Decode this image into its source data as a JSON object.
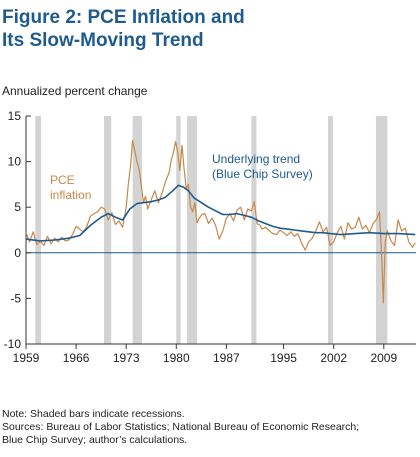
{
  "header": {
    "title_line1": "Figure 2: PCE Inflation and",
    "title_line2": "Its Slow-Moving Trend"
  },
  "notes": {
    "line1": "Note: Shaded bars indicate recessions.",
    "line2": "Sources: Bureau of Labor Statistics; National Bureau of Economic Research;",
    "line3": "Blue Chip Survey; author’s calculations."
  },
  "chart_data": {
    "type": "line",
    "ylabel": "Annualized percent change",
    "xlabel": "",
    "xlim": [
      1959,
      2013.5
    ],
    "ylim": [
      -10,
      15
    ],
    "x_ticks": [
      1959,
      1966,
      1973,
      1980,
      1987,
      1995,
      2002,
      2009
    ],
    "y_ticks": [
      15,
      10,
      5,
      0,
      -5,
      -10
    ],
    "grid": false,
    "colors": {
      "inflation": "#c8884a",
      "trend": "#1f5b8f",
      "recession": "#d3d3d3",
      "zero_line": "#1f5b8f"
    },
    "annotations": [
      {
        "text_lines": [
          "PCE",
          "inflation"
        ],
        "series": "inflation"
      },
      {
        "text_lines": [
          "Underlying trend",
          "(Blue Chip Survey)"
        ],
        "series": "trend"
      }
    ],
    "recessions": [
      [
        1960.3,
        1961.1
      ],
      [
        1969.9,
        1970.9
      ],
      [
        1973.9,
        1975.2
      ],
      [
        1980.0,
        1980.6
      ],
      [
        1981.5,
        1982.9
      ],
      [
        1990.5,
        1991.2
      ],
      [
        2001.2,
        2001.9
      ],
      [
        2007.9,
        2009.5
      ]
    ],
    "series": [
      {
        "name": "PCE inflation",
        "points": [
          [
            1959.0,
            2.2
          ],
          [
            1959.5,
            1.2
          ],
          [
            1960.0,
            2.3
          ],
          [
            1960.5,
            0.9
          ],
          [
            1961.0,
            1.3
          ],
          [
            1961.5,
            0.8
          ],
          [
            1962.0,
            1.8
          ],
          [
            1962.5,
            1.0
          ],
          [
            1963.0,
            1.6
          ],
          [
            1963.5,
            1.2
          ],
          [
            1964.0,
            1.7
          ],
          [
            1964.5,
            1.3
          ],
          [
            1965.0,
            1.4
          ],
          [
            1965.5,
            2.0
          ],
          [
            1966.0,
            2.9
          ],
          [
            1966.5,
            2.6
          ],
          [
            1967.0,
            2.3
          ],
          [
            1967.5,
            2.9
          ],
          [
            1968.0,
            4.0
          ],
          [
            1968.5,
            4.3
          ],
          [
            1969.0,
            4.5
          ],
          [
            1969.5,
            5.0
          ],
          [
            1970.0,
            4.8
          ],
          [
            1970.5,
            3.6
          ],
          [
            1971.0,
            4.4
          ],
          [
            1971.5,
            3.1
          ],
          [
            1972.0,
            3.5
          ],
          [
            1972.5,
            2.8
          ],
          [
            1973.0,
            5.0
          ],
          [
            1973.3,
            7.5
          ],
          [
            1973.6,
            9.5
          ],
          [
            1973.9,
            12.3
          ],
          [
            1974.2,
            11.2
          ],
          [
            1974.5,
            10.0
          ],
          [
            1974.8,
            9.2
          ],
          [
            1975.1,
            7.5
          ],
          [
            1975.4,
            5.5
          ],
          [
            1975.7,
            6.2
          ],
          [
            1976.0,
            4.8
          ],
          [
            1976.5,
            5.8
          ],
          [
            1977.0,
            6.8
          ],
          [
            1977.5,
            5.5
          ],
          [
            1978.0,
            6.5
          ],
          [
            1978.5,
            7.8
          ],
          [
            1979.0,
            8.8
          ],
          [
            1979.3,
            10.2
          ],
          [
            1979.6,
            11.0
          ],
          [
            1979.9,
            12.2
          ],
          [
            1980.2,
            11.0
          ],
          [
            1980.5,
            9.0
          ],
          [
            1980.8,
            11.8
          ],
          [
            1981.1,
            9.2
          ],
          [
            1981.4,
            7.0
          ],
          [
            1981.7,
            7.5
          ],
          [
            1982.0,
            5.0
          ],
          [
            1982.3,
            4.5
          ],
          [
            1982.6,
            5.5
          ],
          [
            1982.9,
            3.3
          ],
          [
            1983.2,
            3.8
          ],
          [
            1983.6,
            4.2
          ],
          [
            1984.0,
            4.3
          ],
          [
            1984.5,
            3.2
          ],
          [
            1985.0,
            3.8
          ],
          [
            1985.5,
            3.0
          ],
          [
            1986.0,
            1.5
          ],
          [
            1986.5,
            2.4
          ],
          [
            1987.0,
            3.8
          ],
          [
            1987.5,
            4.3
          ],
          [
            1988.0,
            3.5
          ],
          [
            1988.5,
            4.7
          ],
          [
            1989.0,
            5.0
          ],
          [
            1989.5,
            3.6
          ],
          [
            1990.0,
            4.8
          ],
          [
            1990.5,
            4.6
          ],
          [
            1990.9,
            5.6
          ],
          [
            1991.3,
            3.2
          ],
          [
            1991.7,
            3.0
          ],
          [
            1992.0,
            2.6
          ],
          [
            1992.5,
            2.8
          ],
          [
            1993.0,
            2.4
          ],
          [
            1993.5,
            2.1
          ],
          [
            1994.0,
            2.0
          ],
          [
            1994.5,
            2.5
          ],
          [
            1995.0,
            2.2
          ],
          [
            1995.5,
            1.9
          ],
          [
            1996.0,
            2.3
          ],
          [
            1996.5,
            1.8
          ],
          [
            1997.0,
            2.1
          ],
          [
            1997.5,
            1.1
          ],
          [
            1998.0,
            0.3
          ],
          [
            1998.5,
            1.2
          ],
          [
            1999.0,
            1.6
          ],
          [
            1999.5,
            2.4
          ],
          [
            2000.0,
            3.4
          ],
          [
            2000.5,
            2.3
          ],
          [
            2001.0,
            2.8
          ],
          [
            2001.5,
            0.8
          ],
          [
            2002.0,
            1.2
          ],
          [
            2002.5,
            2.2
          ],
          [
            2003.0,
            2.9
          ],
          [
            2003.5,
            1.5
          ],
          [
            2004.0,
            3.3
          ],
          [
            2004.5,
            2.6
          ],
          [
            2005.0,
            2.8
          ],
          [
            2005.5,
            3.9
          ],
          [
            2006.0,
            2.6
          ],
          [
            2006.5,
            3.0
          ],
          [
            2007.0,
            2.2
          ],
          [
            2007.5,
            3.2
          ],
          [
            2008.0,
            3.7
          ],
          [
            2008.4,
            4.5
          ],
          [
            2008.7,
            -0.5
          ],
          [
            2008.95,
            -5.5
          ],
          [
            2009.2,
            1.2
          ],
          [
            2009.5,
            2.4
          ],
          [
            2010.0,
            1.3
          ],
          [
            2010.5,
            0.8
          ],
          [
            2011.0,
            3.6
          ],
          [
            2011.5,
            2.4
          ],
          [
            2012.0,
            2.7
          ],
          [
            2012.5,
            1.2
          ],
          [
            2013.0,
            0.6
          ],
          [
            2013.4,
            1.1
          ]
        ]
      },
      {
        "name": "Underlying trend (Blue Chip Survey)",
        "points": [
          [
            1959.0,
            1.5
          ],
          [
            1961.0,
            1.3
          ],
          [
            1963.0,
            1.4
          ],
          [
            1965.0,
            1.6
          ],
          [
            1966.5,
            1.9
          ],
          [
            1968.0,
            3.0
          ],
          [
            1969.5,
            3.9
          ],
          [
            1970.5,
            4.3
          ],
          [
            1971.5,
            3.9
          ],
          [
            1972.5,
            3.6
          ],
          [
            1973.5,
            4.8
          ],
          [
            1974.5,
            5.4
          ],
          [
            1975.5,
            5.5
          ],
          [
            1976.5,
            5.6
          ],
          [
            1977.5,
            5.8
          ],
          [
            1978.5,
            6.1
          ],
          [
            1979.5,
            6.8
          ],
          [
            1980.3,
            7.4
          ],
          [
            1981.0,
            7.2
          ],
          [
            1981.7,
            6.8
          ],
          [
            1982.5,
            6.0
          ],
          [
            1983.5,
            5.5
          ],
          [
            1984.5,
            5.0
          ],
          [
            1985.5,
            4.6
          ],
          [
            1986.5,
            4.2
          ],
          [
            1987.5,
            4.2
          ],
          [
            1988.5,
            4.3
          ],
          [
            1989.5,
            4.1
          ],
          [
            1990.5,
            3.9
          ],
          [
            1991.5,
            3.5
          ],
          [
            1992.5,
            3.2
          ],
          [
            1993.5,
            2.9
          ],
          [
            1994.5,
            2.7
          ],
          [
            1995.5,
            2.6
          ],
          [
            1996.5,
            2.5
          ],
          [
            1997.5,
            2.4
          ],
          [
            1998.5,
            2.3
          ],
          [
            1999.5,
            2.2
          ],
          [
            2000.5,
            2.2
          ],
          [
            2001.5,
            2.1
          ],
          [
            2003.0,
            2.0
          ],
          [
            2005.0,
            2.1
          ],
          [
            2007.0,
            2.2
          ],
          [
            2009.0,
            2.1
          ],
          [
            2011.0,
            2.1
          ],
          [
            2013.4,
            2.0
          ]
        ]
      }
    ]
  }
}
